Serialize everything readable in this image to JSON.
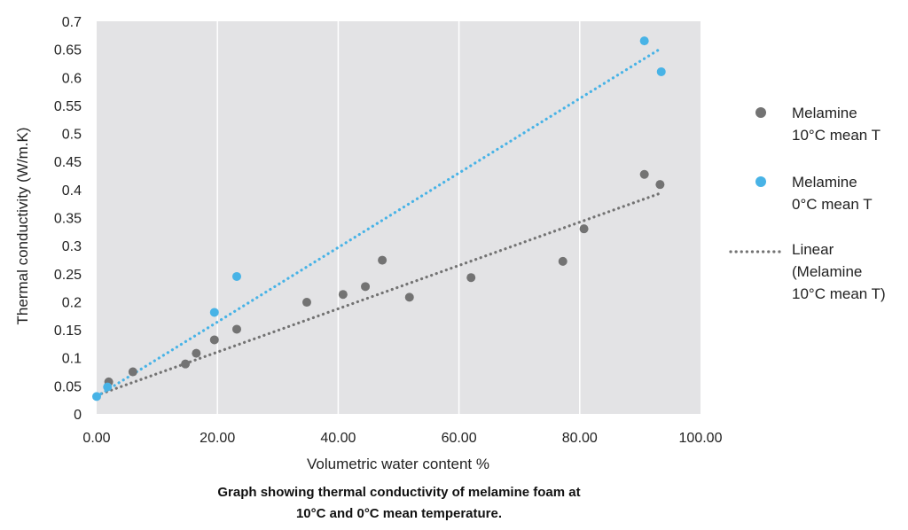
{
  "chart_data": {
    "type": "scatter",
    "xlabel": "Volumetric water content %",
    "ylabel": "Thermal conductivity (W/m.K)",
    "xlim": [
      0,
      100
    ],
    "ylim": [
      0,
      0.7
    ],
    "x_ticks": [
      "0.00",
      "20.00",
      "40.00",
      "60.00",
      "80.00",
      "100.00"
    ],
    "y_ticks": [
      "0",
      "0.05",
      "0.1",
      "0.15",
      "0.2",
      "0.25",
      "0.3",
      "0.35",
      "0.4",
      "0.45",
      "0.5",
      "0.55",
      "0.6",
      "0.65",
      "0.7"
    ],
    "grid": "vertical",
    "legend_position": "right",
    "series": [
      {
        "name_lines": [
          "Melamine",
          "10°C mean T"
        ],
        "color": "#737373",
        "points": [
          [
            2,
            0.057
          ],
          [
            6,
            0.075
          ],
          [
            14.7,
            0.089
          ],
          [
            16.5,
            0.108
          ],
          [
            19.5,
            0.132
          ],
          [
            23.2,
            0.151
          ],
          [
            34.8,
            0.199
          ],
          [
            40.8,
            0.213
          ],
          [
            44.5,
            0.227
          ],
          [
            47.3,
            0.274
          ],
          [
            51.8,
            0.208
          ],
          [
            62,
            0.243
          ],
          [
            77.2,
            0.272
          ],
          [
            80.7,
            0.33
          ],
          [
            90.7,
            0.427
          ],
          [
            93.3,
            0.409
          ]
        ]
      },
      {
        "name_lines": [
          "Melamine",
          "0°C mean T"
        ],
        "color": "#48b3e6",
        "points": [
          [
            0,
            0.031
          ],
          [
            1.8,
            0.048
          ],
          [
            19.5,
            0.181
          ],
          [
            23.2,
            0.245
          ],
          [
            90.7,
            0.665
          ],
          [
            93.5,
            0.61
          ]
        ]
      }
    ],
    "trendlines": [
      {
        "color": "#737373",
        "from": [
          0,
          0.033
        ],
        "to": [
          93.5,
          0.394
        ]
      },
      {
        "color": "#48b3e6",
        "from": [
          0,
          0.031
        ],
        "to": [
          93.5,
          0.652
        ]
      }
    ],
    "trendline_legend_lines": [
      "Linear",
      "(Melamine",
      "10°C mean T)"
    ]
  },
  "caption": {
    "line1": "Graph showing thermal conductivity of melamine foam at",
    "line2": "10°C and 0°C mean temperature."
  }
}
